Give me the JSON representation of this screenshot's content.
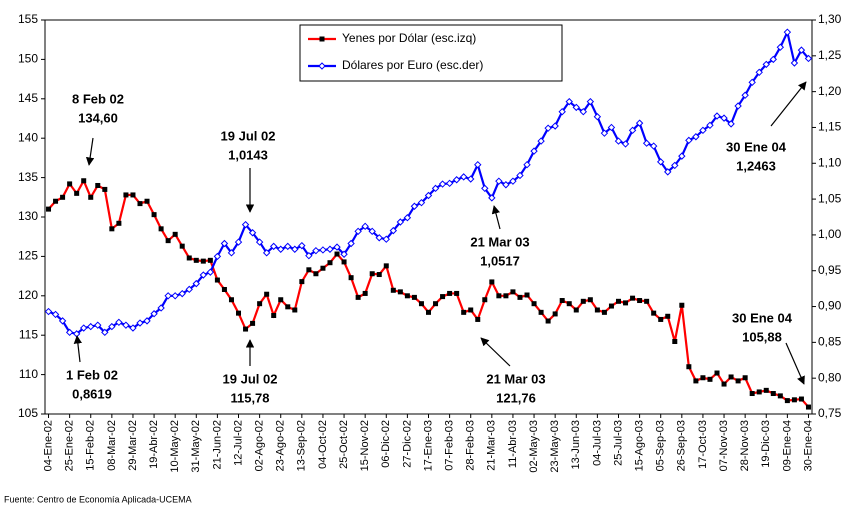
{
  "chart_data": {
    "type": "line",
    "categories": [
      "04-Ene-02",
      null,
      null,
      "25-Ene-02",
      null,
      null,
      "15-Feb-02",
      null,
      null,
      "08-Mar-02",
      null,
      null,
      "29-Mar-02",
      null,
      null,
      "19-Abr-02",
      null,
      null,
      "10-May-02",
      null,
      null,
      "31-May-02",
      null,
      null,
      "21-Jun-02",
      null,
      null,
      "12-Jul-02",
      null,
      null,
      "02-Ago-02",
      null,
      null,
      "23-Ago-02",
      null,
      null,
      "13-Sep-02",
      null,
      null,
      "04-Oct-02",
      null,
      null,
      "25-Oct-02",
      null,
      null,
      "15-Nov-02",
      null,
      null,
      "06-Dic-02",
      null,
      null,
      "27-Dic-02",
      null,
      null,
      "17-Ene-03",
      null,
      null,
      "07-Feb-03",
      null,
      null,
      "28-Feb-03",
      null,
      null,
      "21-Mar-03",
      null,
      null,
      "11-Abr-03",
      null,
      null,
      "02-May-03",
      null,
      null,
      "23-May-03",
      null,
      null,
      "13-Jun-03",
      null,
      null,
      "04-Jul-03",
      null,
      null,
      "25-Jul-03",
      null,
      null,
      "15-Ago-03",
      null,
      null,
      "05-Sep-03",
      null,
      null,
      "26-Sep-03",
      null,
      null,
      "17-Oct-03",
      null,
      null,
      "07-Nov-03",
      null,
      null,
      "28-Nov-03",
      null,
      null,
      "19-Dic-03",
      null,
      null,
      "09-Ene-04",
      null,
      null,
      "30-Ene-04"
    ],
    "series": [
      {
        "name": "Yenes por Dólar (esc.izq)",
        "color": "#ff0000",
        "marker_color": "#000000",
        "axis": "y",
        "values": [
          131,
          132,
          132.5,
          134.2,
          133,
          134.6,
          132.5,
          134,
          133.5,
          128.5,
          129.2,
          132.8,
          132.8,
          131.7,
          132,
          130.3,
          128.5,
          127,
          127.8,
          126.3,
          124.8,
          124.5,
          124.4,
          124.5,
          122,
          120.8,
          119.5,
          117.8,
          115.78,
          116.5,
          119,
          120.2,
          117.5,
          119.5,
          118.6,
          118.2,
          121.8,
          123.3,
          122.8,
          123.5,
          124.2,
          125.3,
          124.3,
          122.3,
          119.8,
          120.3,
          122.8,
          122.7,
          123.8,
          120.7,
          120.5,
          120,
          119.8,
          119,
          117.9,
          119,
          119.9,
          120.3,
          120.3,
          117.9,
          118.2,
          117,
          119.5,
          121.76,
          120,
          120,
          120.5,
          119.8,
          120.1,
          119,
          117.9,
          116.8,
          117.7,
          119.4,
          119,
          118.2,
          119.3,
          119.5,
          118.2,
          117.9,
          118.7,
          119.3,
          119.1,
          119.7,
          119.4,
          119.3,
          117.8,
          117,
          117.4,
          114.2,
          118.8,
          111,
          109.2,
          109.6,
          109.4,
          110.2,
          108.8,
          109.7,
          109.2,
          109.6,
          107.6,
          107.8,
          108,
          107.6,
          107.3,
          106.7,
          106.8,
          106.9,
          105.88
        ]
      },
      {
        "name": "Dólares por Euro (esc.der)",
        "color": "#0000ff",
        "marker_color": "#ffffff",
        "axis": "y2",
        "values": [
          0.893,
          0.889,
          0.88,
          0.864,
          0.8619,
          0.87,
          0.872,
          0.874,
          0.864,
          0.872,
          0.878,
          0.874,
          0.87,
          0.877,
          0.88,
          0.89,
          0.898,
          0.915,
          0.915,
          0.918,
          0.924,
          0.932,
          0.944,
          0.948,
          0.97,
          0.988,
          0.975,
          0.99,
          1.0143,
          1.003,
          0.99,
          0.975,
          0.984,
          0.98,
          0.984,
          0.98,
          0.985,
          0.971,
          0.978,
          0.979,
          0.98,
          0.983,
          0.973,
          0.988,
          1.005,
          1.012,
          1.005,
          0.996,
          0.994,
          1.006,
          1.018,
          1.024,
          1.04,
          1.045,
          1.055,
          1.065,
          1.071,
          1.072,
          1.077,
          1.081,
          1.078,
          1.098,
          1.065,
          1.0517,
          1.075,
          1.07,
          1.075,
          1.083,
          1.098,
          1.117,
          1.131,
          1.149,
          1.152,
          1.172,
          1.186,
          1.178,
          1.172,
          1.186,
          1.165,
          1.142,
          1.15,
          1.131,
          1.127,
          1.146,
          1.156,
          1.128,
          1.124,
          1.102,
          1.088,
          1.097,
          1.11,
          1.132,
          1.137,
          1.146,
          1.153,
          1.166,
          1.163,
          1.155,
          1.18,
          1.195,
          1.213,
          1.227,
          1.238,
          1.245,
          1.262,
          1.283,
          1.24,
          1.258,
          1.2463
        ]
      }
    ],
    "ylim": [
      105,
      155
    ],
    "yticks": [
      105,
      110,
      115,
      120,
      125,
      130,
      135,
      140,
      145,
      150,
      155
    ],
    "y2lim": [
      0.75,
      1.3
    ],
    "y2ticks": [
      {
        "value": 0.75,
        "label": "0,75"
      },
      {
        "value": 0.8,
        "label": "0,80"
      },
      {
        "value": 0.85,
        "label": "0,85"
      },
      {
        "value": 0.9,
        "label": "0,90"
      },
      {
        "value": 0.95,
        "label": "0,95"
      },
      {
        "value": 1.0,
        "label": "1,00"
      },
      {
        "value": 1.05,
        "label": "1,05"
      },
      {
        "value": 1.1,
        "label": "1,10"
      },
      {
        "value": 1.15,
        "label": "1,15"
      },
      {
        "value": 1.2,
        "label": "1,20"
      },
      {
        "value": 1.25,
        "label": "1,25"
      },
      {
        "value": 1.3,
        "label": "1,30"
      }
    ],
    "grid": false,
    "legend": "top",
    "annotations": [
      [
        "8 Feb 02",
        "134,60"
      ],
      [
        "19 Jul 02",
        "1,0143"
      ],
      [
        "1 Feb 02",
        "0,8619"
      ],
      [
        "19 Jul 02",
        "115,78"
      ],
      [
        "21 Mar 03",
        "1,0517"
      ],
      [
        "21 Mar 03",
        "121,76"
      ],
      [
        "30 Ene 04",
        "1,2463"
      ],
      [
        "30 Ene 04",
        "105,88"
      ]
    ],
    "source": "Fuente: Centro de Economía Aplicada-UCEMA"
  }
}
